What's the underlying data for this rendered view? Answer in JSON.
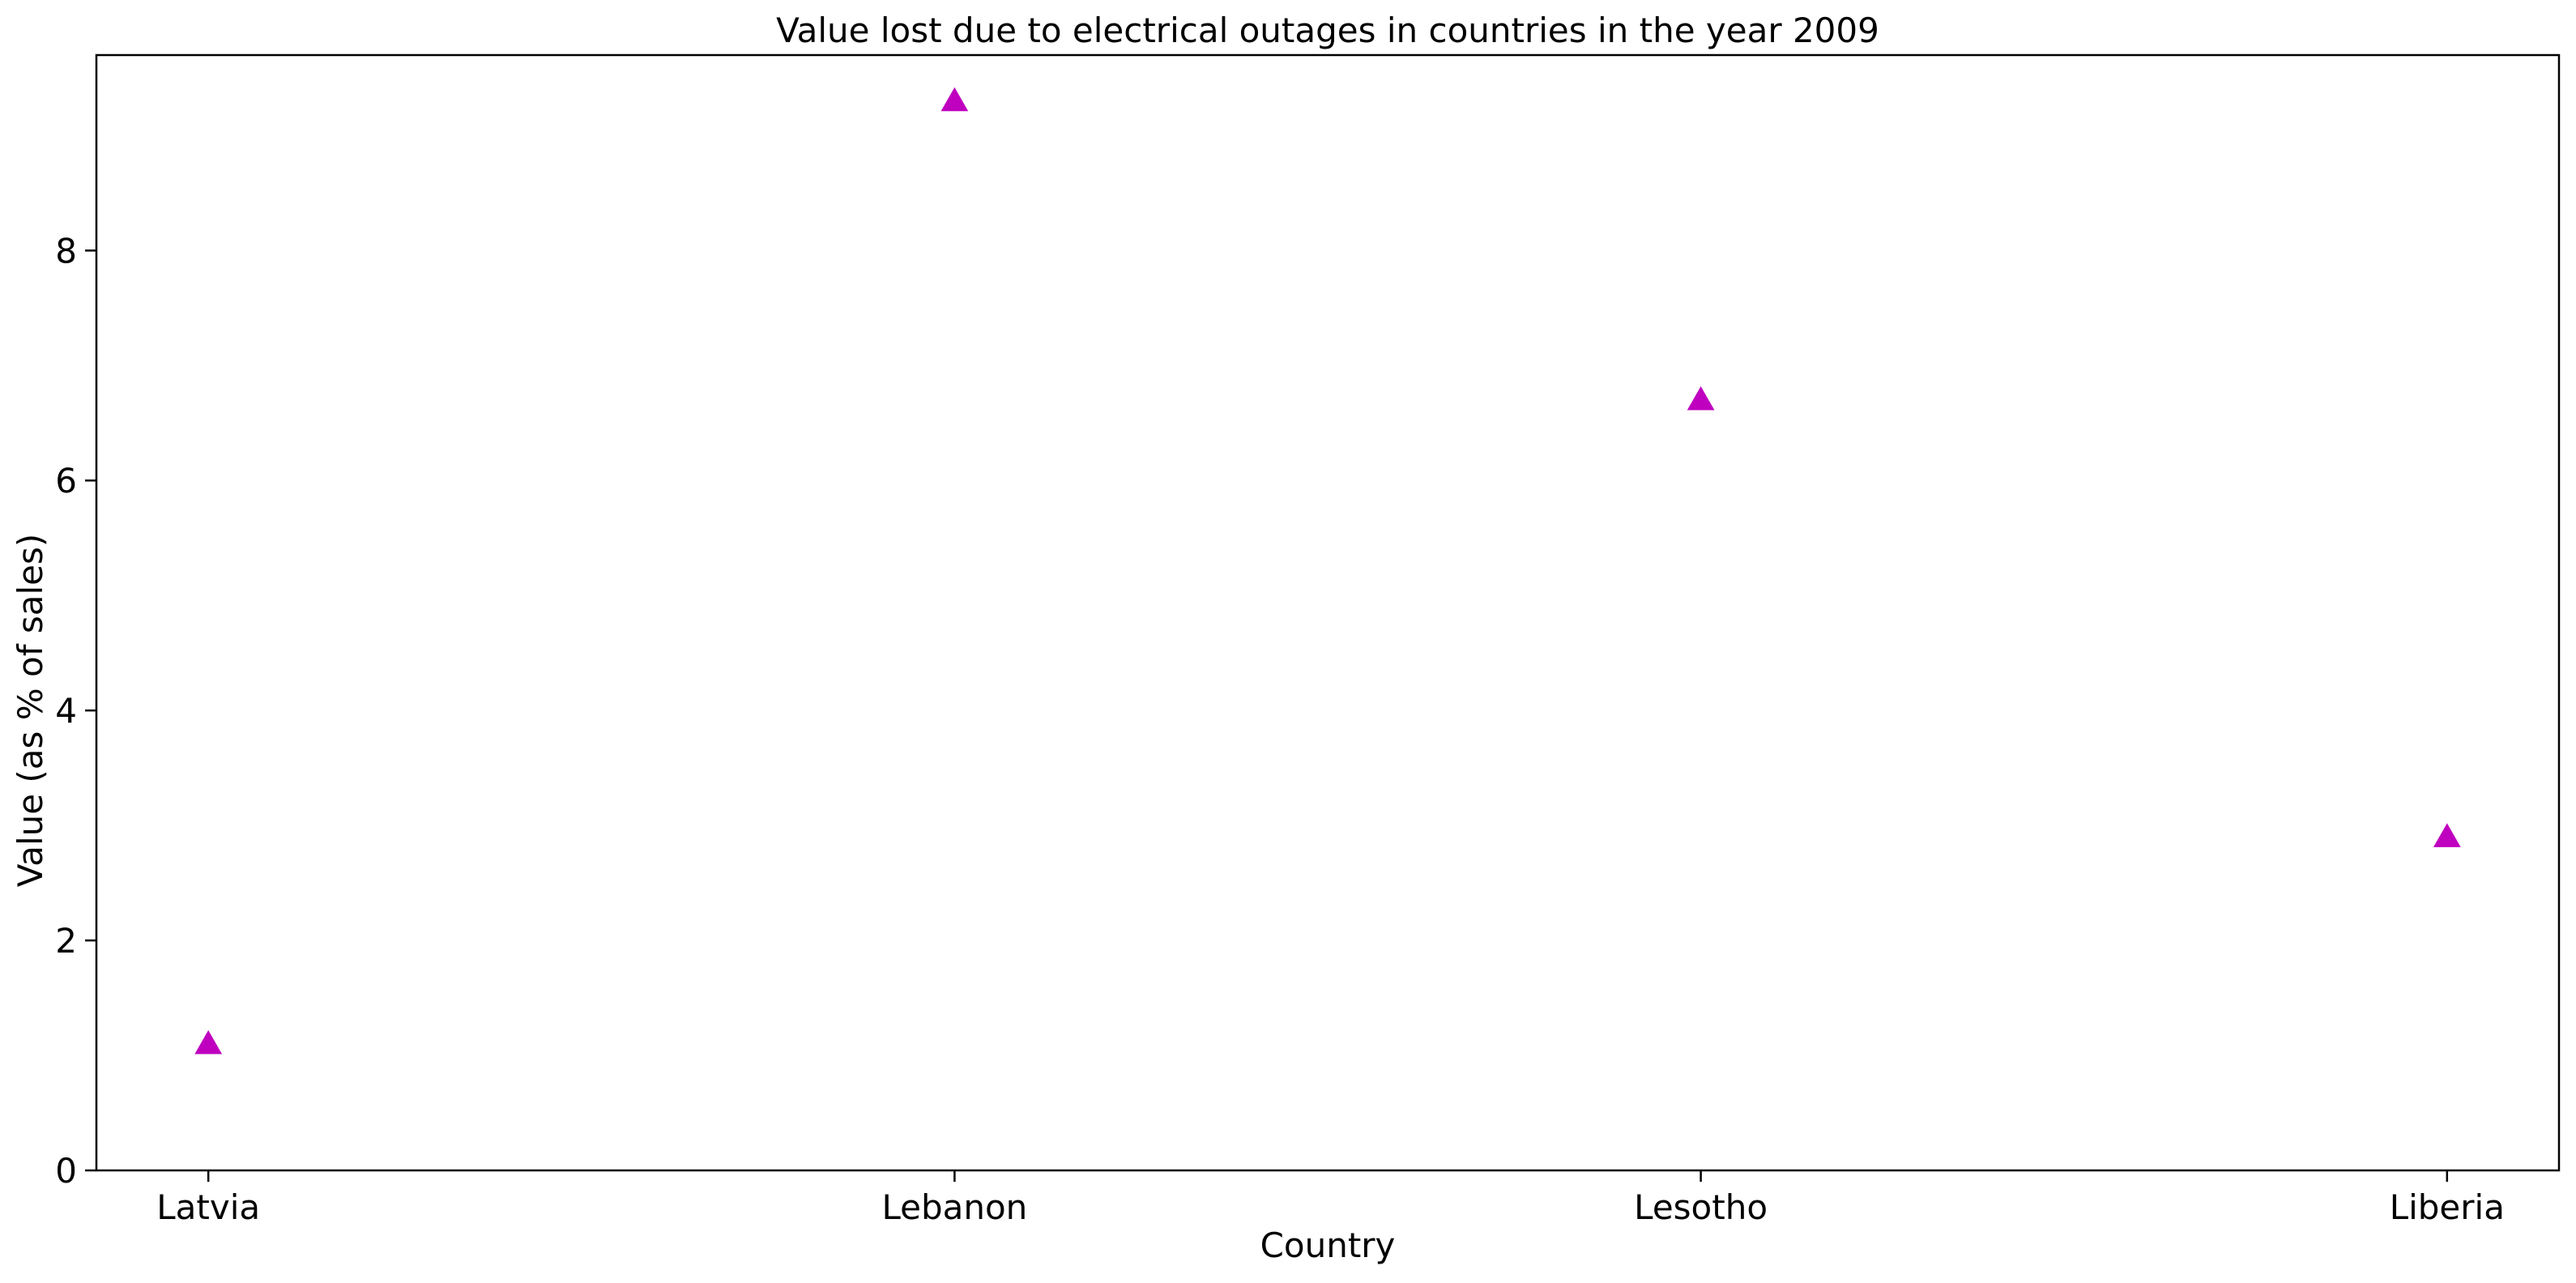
{
  "chart_data": {
    "type": "scatter",
    "title": "Value lost due to electrical outages in countries in the year 2009",
    "xlabel": "Country",
    "ylabel": "Value (as % of sales)",
    "categories": [
      "Latvia",
      "Lebanon",
      "Lesotho",
      "Liberia"
    ],
    "series": [
      {
        "marker": "triangle-up",
        "color": "#bf00bf",
        "values": [
          1.1,
          9.3,
          6.7,
          2.9
        ]
      }
    ],
    "ylim": [
      0,
      9.7
    ],
    "yticks": [
      0,
      2,
      4,
      6,
      8
    ],
    "grid": false,
    "legend": "none"
  }
}
